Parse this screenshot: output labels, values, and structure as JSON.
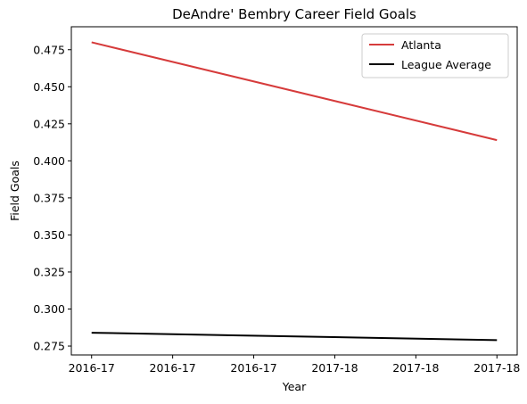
{
  "chart_data": {
    "type": "line",
    "title": "DeAndre' Bembry Career Field Goals",
    "xlabel": "Year",
    "ylabel": "Field Goals",
    "x_tick_labels": [
      "2016-17",
      "2016-17",
      "2016-17",
      "2017-18",
      "2017-18",
      "2017-18"
    ],
    "xlim": [
      -0.25,
      5.25
    ],
    "ylim": [
      0.269,
      0.4905
    ],
    "y_ticks": [
      0.275,
      0.3,
      0.325,
      0.35,
      0.375,
      0.4,
      0.425,
      0.45,
      0.475
    ],
    "y_tick_format_decimals": 3,
    "grid": false,
    "legend_position": "top-right",
    "series": [
      {
        "name": "Atlanta",
        "color": "#d63b3b",
        "x": [
          0,
          5
        ],
        "values": [
          0.48,
          0.414
        ]
      },
      {
        "name": "League Average",
        "color": "#000000",
        "x": [
          0,
          5
        ],
        "values": [
          0.284,
          0.279
        ]
      }
    ]
  }
}
